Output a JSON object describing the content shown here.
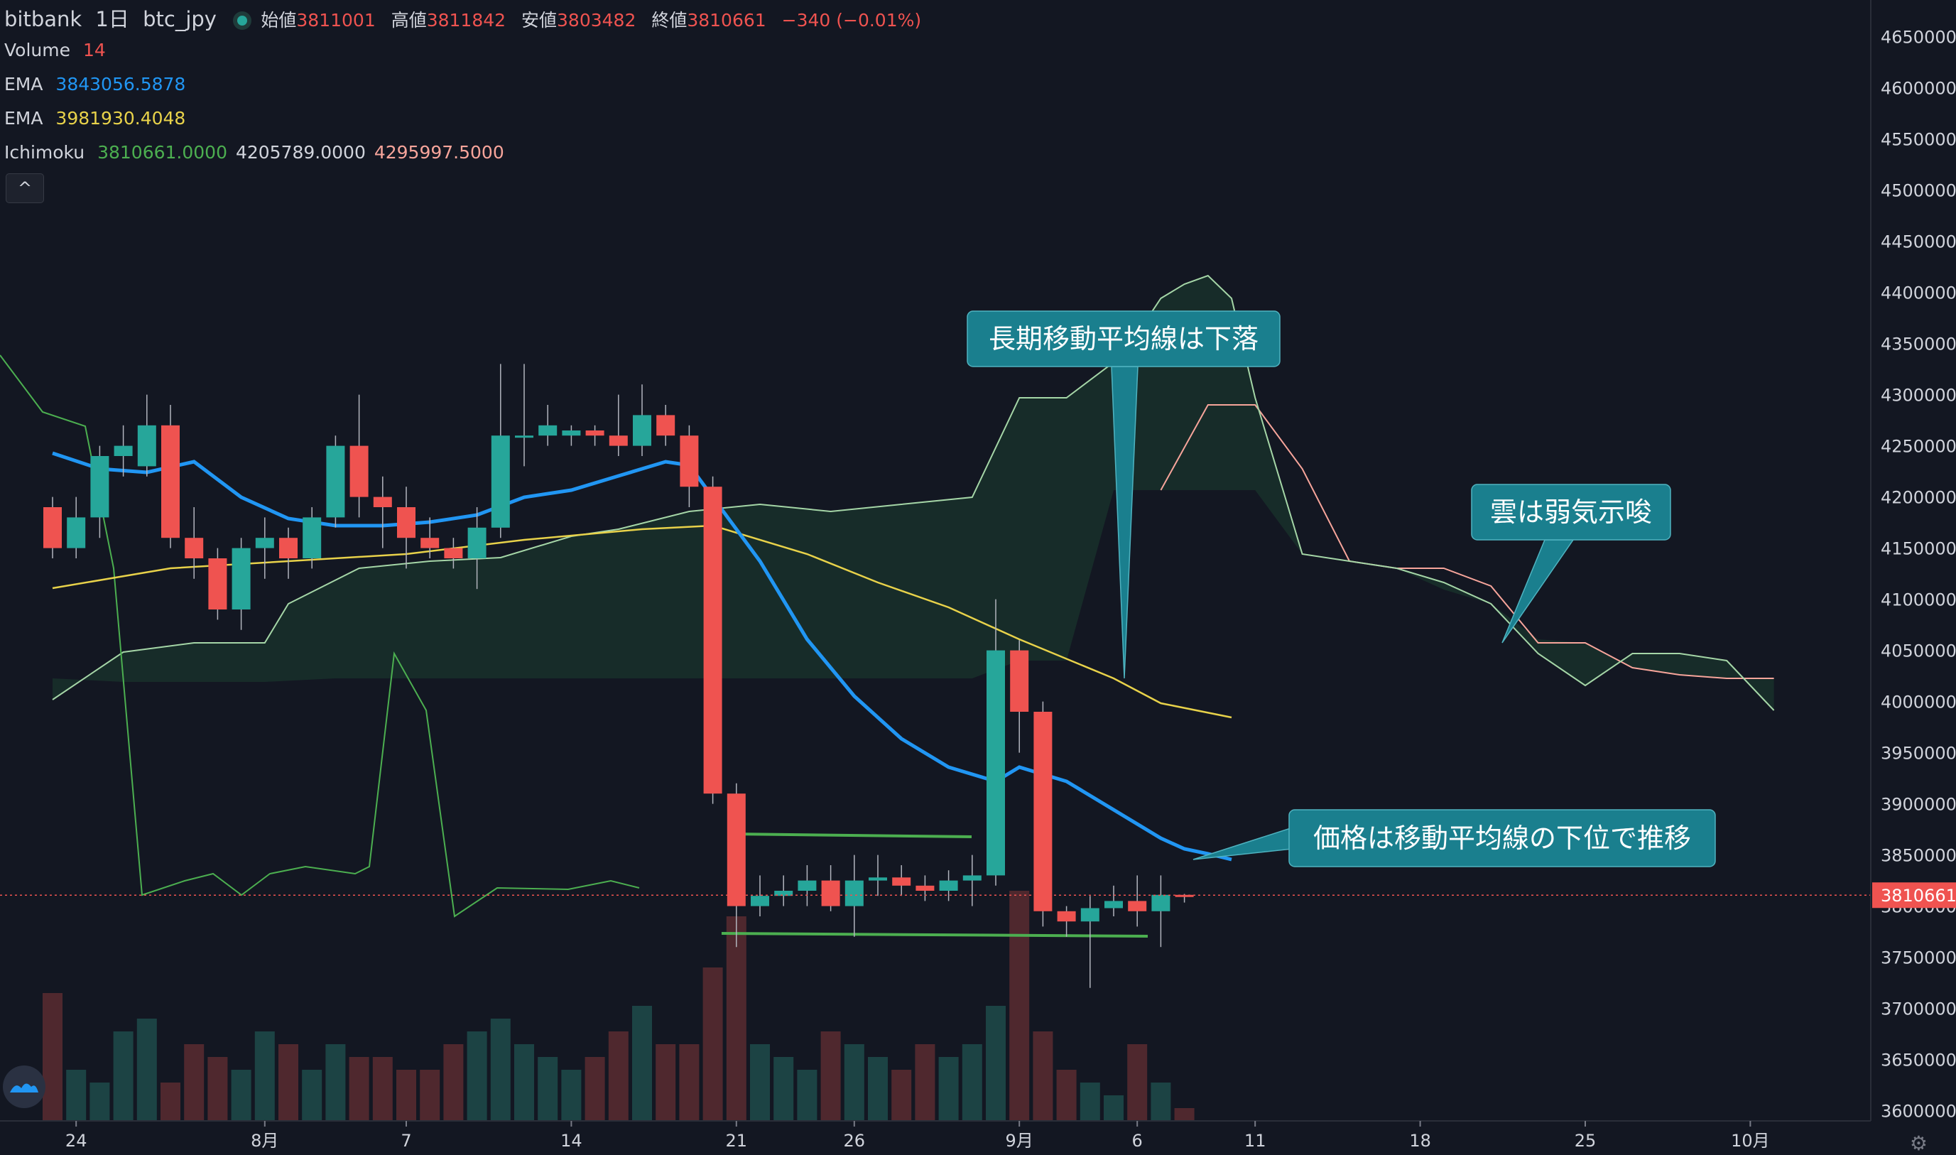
{
  "header": {
    "exchange": "bitbank",
    "interval": "1日",
    "symbol": "btc_jpy",
    "open_label": "始値",
    "open": "3811001",
    "high_label": "高値",
    "high": "3811842",
    "low_label": "安値",
    "low": "3803482",
    "close_label": "終値",
    "close": "3810661",
    "change": "−340 (−0.01%)"
  },
  "indicators": {
    "volume_label": "Volume",
    "volume_value": "14",
    "ema1_label": "EMA",
    "ema1_value": "3843056.5878",
    "ema2_label": "EMA",
    "ema2_value": "3981930.4048",
    "ichimoku_label": "Ichimoku",
    "ichimoku_v1": "3810661.0000",
    "ichimoku_v2": "4205789.0000",
    "ichimoku_v3": "4295997.5000"
  },
  "colors": {
    "background": "#131722",
    "up": "#26a69a",
    "down": "#ef5350",
    "ema_short": "#2196f3",
    "ema_long": "#e8d24a",
    "callout": "#1a7f8e",
    "guide_line": "#4caf50"
  },
  "icons": [
    "chevron-up-icon",
    "bitbank-logo-icon",
    "gear-icon"
  ],
  "annotations": [
    {
      "text": "長期移動平均線は下落"
    },
    {
      "text": "雲は弱気示唆"
    },
    {
      "text": "価格は移動平均線の下位で推移"
    }
  ],
  "chart_data": {
    "type": "candlestick",
    "yaxis": {
      "ticks": [
        4650000,
        4600000,
        4550000,
        4500000,
        4450000,
        4400000,
        4350000,
        4300000,
        4250000,
        4200000,
        4150000,
        4100000,
        4050000,
        4000000,
        3950000,
        3900000,
        3850000,
        3800000,
        3750000,
        3700000,
        3650000,
        3600000
      ],
      "range": [
        3590000,
        4665000
      ]
    },
    "xaxis": {
      "ticks": [
        {
          "label": "24",
          "i": 1
        },
        {
          "label": "8月",
          "i": 9
        },
        {
          "label": "7",
          "i": 15
        },
        {
          "label": "14",
          "i": 22
        },
        {
          "label": "21",
          "i": 29
        },
        {
          "label": "26",
          "i": 34
        },
        {
          "label": "9月",
          "i": 41
        },
        {
          "label": "6",
          "i": 46
        },
        {
          "label": "11",
          "i": 51
        },
        {
          "label": "18",
          "i": 58
        },
        {
          "label": "25",
          "i": 65
        },
        {
          "label": "10月",
          "i": 72
        }
      ]
    },
    "last_price": "3810661",
    "candles": [
      [
        4190000,
        4150000,
        4200000,
        4140000
      ],
      [
        4150000,
        4180000,
        4200000,
        4140000
      ],
      [
        4180000,
        4240000,
        4250000,
        4160000
      ],
      [
        4240000,
        4250000,
        4270000,
        4220000
      ],
      [
        4230000,
        4270000,
        4300000,
        4220000
      ],
      [
        4270000,
        4160000,
        4290000,
        4150000
      ],
      [
        4160000,
        4140000,
        4190000,
        4120000
      ],
      [
        4140000,
        4090000,
        4150000,
        4080000
      ],
      [
        4090000,
        4150000,
        4160000,
        4070000
      ],
      [
        4150000,
        4160000,
        4180000,
        4120000
      ],
      [
        4160000,
        4140000,
        4170000,
        4120000
      ],
      [
        4140000,
        4180000,
        4190000,
        4130000
      ],
      [
        4180000,
        4250000,
        4260000,
        4170000
      ],
      [
        4250000,
        4200000,
        4300000,
        4180000
      ],
      [
        4200000,
        4190000,
        4220000,
        4150000
      ],
      [
        4190000,
        4160000,
        4210000,
        4130000
      ],
      [
        4160000,
        4150000,
        4180000,
        4140000
      ],
      [
        4150000,
        4140000,
        4160000,
        4130000
      ],
      [
        4140000,
        4170000,
        4190000,
        4110000
      ],
      [
        4170000,
        4260000,
        4330000,
        4160000
      ],
      [
        4260000,
        4260000,
        4330000,
        4230000
      ],
      [
        4260000,
        4270000,
        4290000,
        4250000
      ],
      [
        4260000,
        4265000,
        4270000,
        4250000
      ],
      [
        4265000,
        4260000,
        4270000,
        4250000
      ],
      [
        4260000,
        4250000,
        4300000,
        4240000
      ],
      [
        4250000,
        4280000,
        4310000,
        4240000
      ],
      [
        4280000,
        4260000,
        4290000,
        4250000
      ],
      [
        4260000,
        4210000,
        4270000,
        4190000
      ],
      [
        4210000,
        3910000,
        4220000,
        3900000
      ],
      [
        3910000,
        3800000,
        3920000,
        3760000
      ],
      [
        3800000,
        3810000,
        3830000,
        3790000
      ],
      [
        3810000,
        3815000,
        3830000,
        3800000
      ],
      [
        3815000,
        3825000,
        3840000,
        3800000
      ],
      [
        3825000,
        3800000,
        3840000,
        3795000
      ],
      [
        3800000,
        3825000,
        3850000,
        3770000
      ],
      [
        3825000,
        3828000,
        3850000,
        3810000
      ],
      [
        3828000,
        3820000,
        3840000,
        3810000
      ],
      [
        3820000,
        3815000,
        3830000,
        3805000
      ],
      [
        3815000,
        3825000,
        3835000,
        3805000
      ],
      [
        3825000,
        3830000,
        3850000,
        3800000
      ],
      [
        3830000,
        4050000,
        4100000,
        3820000
      ],
      [
        4050000,
        3990000,
        4060000,
        3950000
      ],
      [
        3990000,
        3795000,
        4000000,
        3780000
      ],
      [
        3795000,
        3785000,
        3800000,
        3770000
      ],
      [
        3785000,
        3798000,
        3810000,
        3720000
      ],
      [
        3798000,
        3805000,
        3820000,
        3790000
      ],
      [
        3805000,
        3795000,
        3830000,
        3780000
      ],
      [
        3795000,
        3811000,
        3830000,
        3760000
      ],
      [
        3811001,
        3810661,
        3811842,
        3803482
      ]
    ]
  }
}
